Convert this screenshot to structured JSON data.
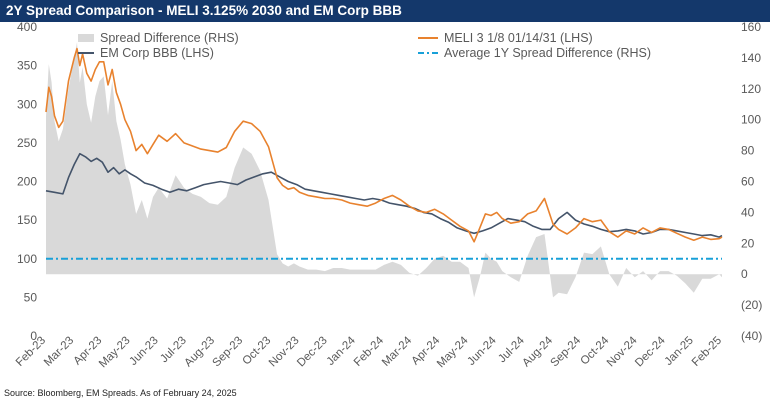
{
  "title": "2Y Spread Comparison - MELI 3.125% 2030 and EM Corp BBB",
  "source": "Source: Bloomberg, EM Spreads. As of February 24, 2025",
  "colors": {
    "title_bg": "#14386b",
    "spread_diff": "#d9d9d9",
    "meli": "#e8822e",
    "em_corp": "#44546a",
    "avg_line": "#18a0d8",
    "axis_text": "#595959"
  },
  "chart_data": {
    "type": "line",
    "x_tick_labels": [
      "Feb-23",
      "Mar-23",
      "Apr-23",
      "May-23",
      "Jun-23",
      "Jul-23",
      "Aug-23",
      "Sep-23",
      "Oct-23",
      "Nov-23",
      "Dec-23",
      "Jan-24",
      "Feb-24",
      "Mar-24",
      "Apr-24",
      "May-24",
      "Jun-24",
      "Jul-24",
      "Aug-24",
      "Sep-24",
      "Oct-24",
      "Nov-24",
      "Dec-24",
      "Jan-25",
      "Feb-25"
    ],
    "left_axis": {
      "ylim": [
        0,
        400
      ],
      "ticks": [
        "0",
        "50",
        "100",
        "150",
        "200",
        "250",
        "300",
        "350",
        "400"
      ]
    },
    "right_axis": {
      "ylim": [
        -40,
        160
      ],
      "ticks": [
        "(40)",
        "(20)",
        "0",
        "20",
        "40",
        "60",
        "80",
        "100",
        "120",
        "140",
        "160"
      ]
    },
    "x_index_range": [
      0,
      24
    ],
    "legend": {
      "placement": "top",
      "entries": [
        "Spread Difference (RHS)",
        "MELI 3 1/8 01/14/31 (LHS)",
        "EM Corp BBB (LHS)",
        "Average 1Y Spread Difference (RHS)"
      ]
    },
    "series": [
      {
        "name": "MELI 3 1/8 01/14/31 (LHS)",
        "axis": "left",
        "x": [
          0,
          0.1,
          0.2,
          0.3,
          0.45,
          0.6,
          0.8,
          1.0,
          1.1,
          1.2,
          1.3,
          1.45,
          1.6,
          1.75,
          1.9,
          2.05,
          2.2,
          2.35,
          2.5,
          2.65,
          2.8,
          3.0,
          3.2,
          3.4,
          3.6,
          3.8,
          4.0,
          4.3,
          4.6,
          4.9,
          5.2,
          5.5,
          5.8,
          6.1,
          6.4,
          6.7,
          7.0,
          7.3,
          7.6,
          7.9,
          8.2,
          8.4,
          8.6,
          8.8,
          9.0,
          9.3,
          9.6,
          9.9,
          10.2,
          10.5,
          10.8,
          11.1,
          11.4,
          11.7,
          12.0,
          12.3,
          12.6,
          12.9,
          13.2,
          13.5,
          13.8,
          14.1,
          14.4,
          14.7,
          15.0,
          15.2,
          15.4,
          15.6,
          15.8,
          16.0,
          16.2,
          16.5,
          16.8,
          17.1,
          17.4,
          17.7,
          18.0,
          18.2,
          18.5,
          18.8,
          19.1,
          19.4,
          19.7,
          20.0,
          20.3,
          20.6,
          20.9,
          21.2,
          21.5,
          21.8,
          22.1,
          22.4,
          22.7,
          23.0,
          23.3,
          23.6,
          23.9,
          24.0
        ],
        "values": [
          290,
          322,
          310,
          285,
          270,
          278,
          330,
          360,
          372,
          350,
          365,
          340,
          330,
          345,
          355,
          355,
          325,
          345,
          315,
          300,
          280,
          265,
          240,
          248,
          236,
          248,
          260,
          252,
          262,
          250,
          246,
          242,
          240,
          238,
          244,
          265,
          278,
          275,
          265,
          245,
          205,
          195,
          190,
          192,
          186,
          182,
          180,
          178,
          178,
          176,
          172,
          170,
          168,
          172,
          178,
          182,
          176,
          168,
          162,
          160,
          164,
          158,
          150,
          142,
          136,
          122,
          140,
          158,
          156,
          160,
          152,
          146,
          148,
          158,
          162,
          178,
          145,
          138,
          132,
          140,
          152,
          148,
          150,
          135,
          128,
          136,
          132,
          140,
          134,
          140,
          138,
          133,
          128,
          124,
          128,
          125,
          126,
          128
        ]
      },
      {
        "name": "EM Corp BBB (LHS)",
        "axis": "left",
        "x": [
          0,
          0.3,
          0.6,
          0.8,
          1.0,
          1.2,
          1.4,
          1.6,
          1.8,
          2.0,
          2.2,
          2.4,
          2.6,
          2.8,
          3.0,
          3.2,
          3.5,
          3.8,
          4.1,
          4.4,
          4.7,
          5.0,
          5.3,
          5.6,
          5.9,
          6.2,
          6.5,
          6.8,
          7.1,
          7.4,
          7.7,
          8.0,
          8.3,
          8.6,
          8.9,
          9.2,
          9.5,
          9.8,
          10.1,
          10.4,
          10.7,
          11.0,
          11.3,
          11.6,
          11.9,
          12.2,
          12.5,
          12.8,
          13.1,
          13.4,
          13.7,
          14.0,
          14.3,
          14.6,
          14.9,
          15.2,
          15.5,
          15.8,
          16.1,
          16.4,
          16.7,
          17.0,
          17.3,
          17.6,
          17.9,
          18.2,
          18.5,
          18.8,
          19.1,
          19.4,
          19.7,
          20.0,
          20.3,
          20.6,
          20.9,
          21.2,
          21.5,
          21.8,
          22.1,
          22.4,
          22.7,
          23.0,
          23.3,
          23.6,
          23.9,
          24.0
        ],
        "values": [
          188,
          186,
          184,
          205,
          222,
          236,
          232,
          226,
          230,
          225,
          212,
          218,
          210,
          215,
          210,
          206,
          198,
          195,
          190,
          186,
          190,
          188,
          192,
          196,
          198,
          200,
          198,
          196,
          202,
          206,
          210,
          212,
          206,
          200,
          196,
          190,
          188,
          186,
          184,
          182,
          180,
          178,
          176,
          178,
          176,
          172,
          170,
          168,
          165,
          160,
          158,
          152,
          147,
          140,
          136,
          133,
          136,
          140,
          146,
          152,
          150,
          148,
          142,
          138,
          138,
          152,
          160,
          150,
          145,
          142,
          138,
          135,
          136,
          138,
          136,
          132,
          134,
          138,
          138,
          136,
          134,
          132,
          130,
          131,
          128,
          130
        ]
      },
      {
        "name": "Spread Difference (RHS)",
        "axis": "right",
        "type": "area",
        "x": [
          0,
          0.1,
          0.2,
          0.3,
          0.45,
          0.6,
          0.8,
          1.0,
          1.1,
          1.2,
          1.3,
          1.45,
          1.6,
          1.75,
          1.9,
          2.05,
          2.2,
          2.35,
          2.5,
          2.65,
          2.8,
          3.0,
          3.2,
          3.4,
          3.6,
          3.8,
          4.0,
          4.3,
          4.6,
          4.9,
          5.2,
          5.5,
          5.8,
          6.1,
          6.4,
          6.7,
          7.0,
          7.3,
          7.6,
          7.9,
          8.2,
          8.4,
          8.6,
          8.8,
          9.0,
          9.3,
          9.6,
          9.9,
          10.2,
          10.5,
          10.8,
          11.1,
          11.4,
          11.7,
          12.0,
          12.3,
          12.6,
          12.9,
          13.2,
          13.5,
          13.8,
          14.1,
          14.4,
          14.7,
          15.0,
          15.2,
          15.4,
          15.6,
          15.8,
          16.0,
          16.2,
          16.5,
          16.8,
          17.1,
          17.4,
          17.7,
          18.0,
          18.2,
          18.5,
          18.8,
          19.1,
          19.4,
          19.7,
          20.0,
          20.3,
          20.6,
          20.9,
          21.2,
          21.5,
          21.8,
          22.1,
          22.4,
          22.7,
          23.0,
          23.3,
          23.6,
          23.9,
          24.0
        ],
        "values": [
          102,
          136,
          124,
          99,
          86,
          94,
          120,
          140,
          150,
          124,
          134,
          110,
          98,
          115,
          125,
          128,
          103,
          125,
          99,
          87,
          71,
          58,
          39,
          48,
          36,
          50,
          56,
          49,
          64,
          56,
          52,
          50,
          46,
          45,
          50,
          69,
          82,
          78,
          67,
          48,
          13,
          7,
          5,
          7,
          5,
          3,
          3,
          2,
          4,
          4,
          3,
          3,
          3,
          3,
          6,
          8,
          6,
          1,
          -1,
          4,
          10,
          12,
          8,
          8,
          4,
          -15,
          -2,
          14,
          10,
          8,
          2,
          -2,
          -5,
          12,
          24,
          26,
          -15,
          -12,
          -13,
          -2,
          14,
          13,
          18,
          0,
          -8,
          4,
          -2,
          2,
          -4,
          2,
          2,
          -1,
          -6,
          -12,
          -3,
          -3,
          0,
          -2
        ]
      },
      {
        "name": "Average 1Y Spread Difference (RHS)",
        "axis": "right",
        "type": "hline",
        "value": 10
      }
    ]
  }
}
